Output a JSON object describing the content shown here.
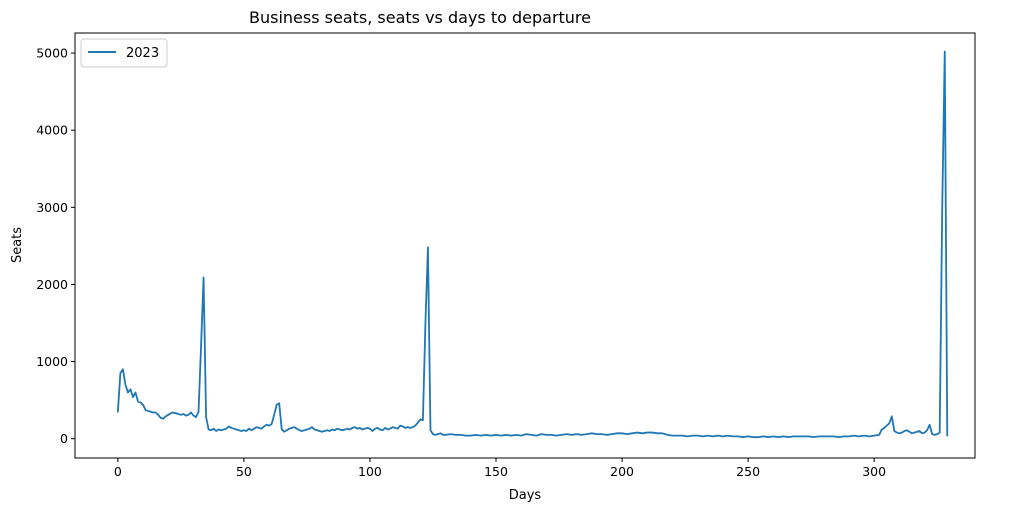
{
  "chart_data": {
    "type": "line",
    "title": "Business seats, seats vs days to departure",
    "xlabel": "Days",
    "ylabel": "Seats",
    "xlim": [
      -17,
      340
    ],
    "ylim": [
      -250,
      5260
    ],
    "x_ticks": [
      0,
      50,
      100,
      150,
      200,
      250,
      300
    ],
    "y_ticks": [
      0,
      1000,
      2000,
      3000,
      4000,
      5000
    ],
    "grid": false,
    "legend": "top-left",
    "color": "#1f77b4",
    "series": [
      {
        "name": "2023",
        "points": [
          [
            0,
            350
          ],
          [
            1,
            850
          ],
          [
            2,
            900
          ],
          [
            3,
            700
          ],
          [
            4,
            600
          ],
          [
            5,
            640
          ],
          [
            6,
            540
          ],
          [
            7,
            600
          ],
          [
            8,
            480
          ],
          [
            9,
            470
          ],
          [
            10,
            440
          ],
          [
            11,
            370
          ],
          [
            12,
            360
          ],
          [
            13,
            350
          ],
          [
            14,
            340
          ],
          [
            15,
            340
          ],
          [
            16,
            310
          ],
          [
            17,
            270
          ],
          [
            18,
            260
          ],
          [
            19,
            290
          ],
          [
            20,
            310
          ],
          [
            21,
            330
          ],
          [
            22,
            340
          ],
          [
            23,
            330
          ],
          [
            24,
            320
          ],
          [
            25,
            310
          ],
          [
            26,
            320
          ],
          [
            27,
            300
          ],
          [
            28,
            310
          ],
          [
            29,
            340
          ],
          [
            30,
            300
          ],
          [
            31,
            280
          ],
          [
            32,
            350
          ],
          [
            33,
            1200
          ],
          [
            34,
            2090
          ],
          [
            35,
            280
          ],
          [
            36,
            120
          ],
          [
            37,
            110
          ],
          [
            38,
            130
          ],
          [
            39,
            100
          ],
          [
            40,
            120
          ],
          [
            41,
            110
          ],
          [
            42,
            120
          ],
          [
            43,
            130
          ],
          [
            44,
            160
          ],
          [
            45,
            140
          ],
          [
            46,
            130
          ],
          [
            47,
            120
          ],
          [
            48,
            110
          ],
          [
            49,
            100
          ],
          [
            50,
            110
          ],
          [
            51,
            100
          ],
          [
            52,
            130
          ],
          [
            53,
            110
          ],
          [
            54,
            130
          ],
          [
            55,
            150
          ],
          [
            56,
            140
          ],
          [
            57,
            130
          ],
          [
            58,
            160
          ],
          [
            59,
            180
          ],
          [
            60,
            170
          ],
          [
            61,
            190
          ],
          [
            62,
            310
          ],
          [
            63,
            440
          ],
          [
            64,
            460
          ],
          [
            65,
            120
          ],
          [
            66,
            90
          ],
          [
            67,
            110
          ],
          [
            68,
            130
          ],
          [
            69,
            140
          ],
          [
            70,
            150
          ],
          [
            71,
            130
          ],
          [
            72,
            110
          ],
          [
            73,
            100
          ],
          [
            74,
            110
          ],
          [
            75,
            120
          ],
          [
            76,
            130
          ],
          [
            77,
            150
          ],
          [
            78,
            120
          ],
          [
            79,
            110
          ],
          [
            80,
            100
          ],
          [
            81,
            90
          ],
          [
            82,
            100
          ],
          [
            83,
            110
          ],
          [
            84,
            100
          ],
          [
            85,
            120
          ],
          [
            86,
            110
          ],
          [
            87,
            130
          ],
          [
            88,
            120
          ],
          [
            89,
            110
          ],
          [
            90,
            120
          ],
          [
            91,
            130
          ],
          [
            92,
            120
          ],
          [
            93,
            140
          ],
          [
            94,
            150
          ],
          [
            95,
            130
          ],
          [
            96,
            140
          ],
          [
            97,
            120
          ],
          [
            98,
            130
          ],
          [
            99,
            140
          ],
          [
            100,
            130
          ],
          [
            101,
            100
          ],
          [
            102,
            130
          ],
          [
            103,
            140
          ],
          [
            104,
            120
          ],
          [
            105,
            110
          ],
          [
            106,
            140
          ],
          [
            107,
            120
          ],
          [
            108,
            130
          ],
          [
            109,
            150
          ],
          [
            110,
            140
          ],
          [
            111,
            130
          ],
          [
            112,
            170
          ],
          [
            113,
            160
          ],
          [
            114,
            140
          ],
          [
            115,
            150
          ],
          [
            116,
            140
          ],
          [
            117,
            150
          ],
          [
            118,
            170
          ],
          [
            119,
            210
          ],
          [
            120,
            250
          ],
          [
            121,
            240
          ],
          [
            122,
            1500
          ],
          [
            123,
            2480
          ],
          [
            124,
            110
          ],
          [
            125,
            60
          ],
          [
            126,
            50
          ],
          [
            127,
            60
          ],
          [
            128,
            70
          ],
          [
            129,
            50
          ],
          [
            130,
            50
          ],
          [
            132,
            60
          ],
          [
            134,
            50
          ],
          [
            136,
            50
          ],
          [
            138,
            40
          ],
          [
            140,
            40
          ],
          [
            142,
            50
          ],
          [
            144,
            40
          ],
          [
            146,
            50
          ],
          [
            148,
            40
          ],
          [
            150,
            50
          ],
          [
            152,
            40
          ],
          [
            154,
            50
          ],
          [
            156,
            40
          ],
          [
            158,
            50
          ],
          [
            160,
            40
          ],
          [
            162,
            60
          ],
          [
            164,
            50
          ],
          [
            166,
            40
          ],
          [
            168,
            60
          ],
          [
            170,
            50
          ],
          [
            172,
            50
          ],
          [
            174,
            40
          ],
          [
            176,
            50
          ],
          [
            178,
            60
          ],
          [
            180,
            50
          ],
          [
            182,
            60
          ],
          [
            184,
            50
          ],
          [
            186,
            60
          ],
          [
            188,
            70
          ],
          [
            190,
            60
          ],
          [
            192,
            60
          ],
          [
            194,
            50
          ],
          [
            196,
            60
          ],
          [
            198,
            70
          ],
          [
            200,
            70
          ],
          [
            202,
            60
          ],
          [
            204,
            70
          ],
          [
            206,
            80
          ],
          [
            208,
            70
          ],
          [
            210,
            80
          ],
          [
            212,
            80
          ],
          [
            214,
            70
          ],
          [
            216,
            70
          ],
          [
            218,
            50
          ],
          [
            220,
            40
          ],
          [
            222,
            40
          ],
          [
            224,
            40
          ],
          [
            226,
            30
          ],
          [
            228,
            40
          ],
          [
            230,
            40
          ],
          [
            232,
            30
          ],
          [
            234,
            40
          ],
          [
            236,
            30
          ],
          [
            238,
            40
          ],
          [
            240,
            30
          ],
          [
            242,
            40
          ],
          [
            244,
            30
          ],
          [
            246,
            30
          ],
          [
            248,
            20
          ],
          [
            250,
            30
          ],
          [
            252,
            20
          ],
          [
            254,
            20
          ],
          [
            256,
            30
          ],
          [
            258,
            20
          ],
          [
            260,
            30
          ],
          [
            262,
            20
          ],
          [
            264,
            30
          ],
          [
            266,
            20
          ],
          [
            268,
            30
          ],
          [
            270,
            30
          ],
          [
            272,
            30
          ],
          [
            274,
            30
          ],
          [
            276,
            20
          ],
          [
            278,
            30
          ],
          [
            280,
            30
          ],
          [
            282,
            30
          ],
          [
            284,
            30
          ],
          [
            286,
            20
          ],
          [
            288,
            30
          ],
          [
            290,
            30
          ],
          [
            292,
            40
          ],
          [
            294,
            30
          ],
          [
            296,
            40
          ],
          [
            298,
            30
          ],
          [
            300,
            40
          ],
          [
            302,
            50
          ],
          [
            303,
            120
          ],
          [
            304,
            140
          ],
          [
            305,
            170
          ],
          [
            306,
            200
          ],
          [
            307,
            290
          ],
          [
            308,
            100
          ],
          [
            309,
            80
          ],
          [
            310,
            70
          ],
          [
            311,
            80
          ],
          [
            312,
            100
          ],
          [
            313,
            110
          ],
          [
            314,
            90
          ],
          [
            315,
            70
          ],
          [
            316,
            80
          ],
          [
            317,
            90
          ],
          [
            318,
            100
          ],
          [
            319,
            70
          ],
          [
            320,
            80
          ],
          [
            321,
            110
          ],
          [
            322,
            180
          ],
          [
            323,
            60
          ],
          [
            324,
            50
          ],
          [
            325,
            60
          ],
          [
            326,
            80
          ],
          [
            327,
            3000
          ],
          [
            328,
            5020
          ],
          [
            329,
            40
          ]
        ]
      }
    ]
  }
}
